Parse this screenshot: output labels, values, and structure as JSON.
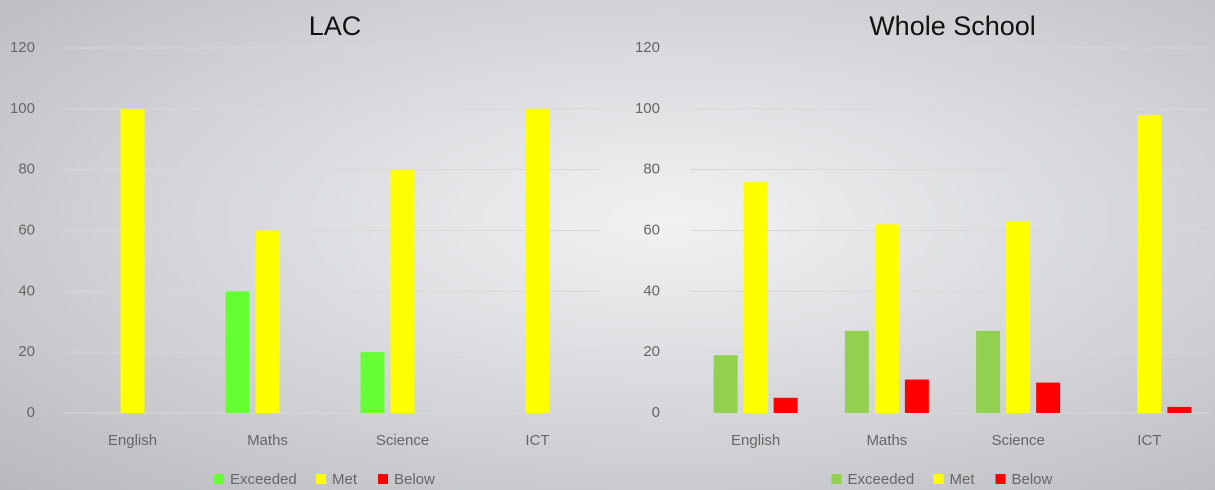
{
  "chart_data": [
    {
      "type": "bar",
      "title": "LAC",
      "categories": [
        "English",
        "Maths",
        "Science",
        "ICT"
      ],
      "series": [
        {
          "name": "Exceeded",
          "color": "#66ff33",
          "values": [
            0,
            40,
            20,
            0
          ]
        },
        {
          "name": "Met",
          "color": "#ffff00",
          "values": [
            100,
            60,
            80,
            100
          ]
        },
        {
          "name": "Below",
          "color": "#ff0000",
          "values": [
            0,
            0,
            0,
            0
          ]
        }
      ],
      "ylim": [
        0,
        120
      ],
      "yticks": [
        0,
        20,
        40,
        60,
        80,
        100,
        120
      ],
      "grid": true,
      "legend": "bottom"
    },
    {
      "type": "bar",
      "title": "Whole School",
      "categories": [
        "English",
        "Maths",
        "Science",
        "ICT"
      ],
      "series": [
        {
          "name": "Exceeded",
          "color": "#92d050",
          "values": [
            19,
            27,
            27,
            0
          ]
        },
        {
          "name": "Met",
          "color": "#ffff00",
          "values": [
            76,
            62,
            63,
            98
          ]
        },
        {
          "name": "Below",
          "color": "#ff0000",
          "values": [
            5,
            11,
            10,
            2
          ]
        }
      ],
      "ylim": [
        0,
        120
      ],
      "yticks": [
        0,
        20,
        40,
        60,
        80,
        100,
        120
      ],
      "grid": true,
      "legend": "bottom"
    }
  ]
}
